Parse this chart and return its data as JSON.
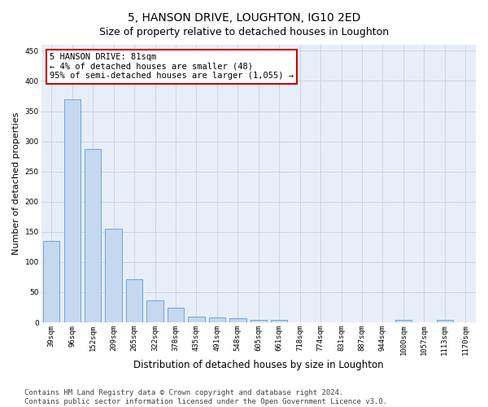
{
  "title": "5, HANSON DRIVE, LOUGHTON, IG10 2ED",
  "subtitle": "Size of property relative to detached houses in Loughton",
  "xlabel": "Distribution of detached houses by size in Loughton",
  "ylabel": "Number of detached properties",
  "categories": [
    "39sqm",
    "96sqm",
    "152sqm",
    "209sqm",
    "265sqm",
    "322sqm",
    "378sqm",
    "435sqm",
    "491sqm",
    "548sqm",
    "605sqm",
    "661sqm",
    "718sqm",
    "774sqm",
    "831sqm",
    "887sqm",
    "944sqm",
    "1000sqm",
    "1057sqm",
    "1113sqm",
    "1170sqm"
  ],
  "values": [
    135,
    370,
    287,
    155,
    72,
    36,
    25,
    10,
    8,
    7,
    4,
    4,
    0,
    0,
    0,
    0,
    0,
    4,
    0,
    4,
    0
  ],
  "bar_color": "#c5d8f0",
  "bar_edge_color": "#5b9bd5",
  "annotation_line1": "5 HANSON DRIVE: 81sqm",
  "annotation_line2": "← 4% of detached houses are smaller (48)",
  "annotation_line3": "95% of semi-detached houses are larger (1,055) →",
  "annotation_box_facecolor": "#ffffff",
  "annotation_box_edgecolor": "#cc0000",
  "ylim": [
    0,
    460
  ],
  "yticks": [
    0,
    50,
    100,
    150,
    200,
    250,
    300,
    350,
    400,
    450
  ],
  "grid_color": "#c8d4e8",
  "background_color": "#e8eef8",
  "footer_line1": "Contains HM Land Registry data © Crown copyright and database right 2024.",
  "footer_line2": "Contains public sector information licensed under the Open Government Licence v3.0.",
  "title_fontsize": 10,
  "subtitle_fontsize": 9,
  "xlabel_fontsize": 8.5,
  "ylabel_fontsize": 8,
  "tick_fontsize": 6.5,
  "footer_fontsize": 6.5,
  "annotation_fontsize": 7.5
}
